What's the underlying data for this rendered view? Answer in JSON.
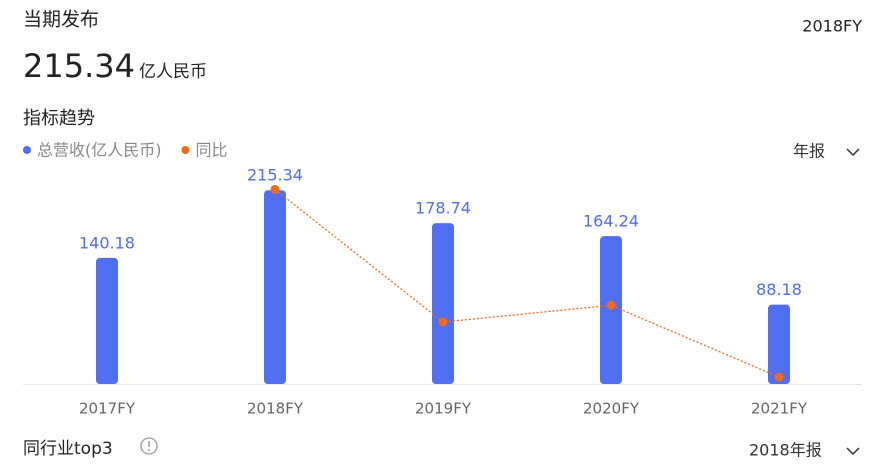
{
  "header": {
    "title": "当期发布",
    "period": "2018FY",
    "value": "215.34",
    "unit": "亿人民币"
  },
  "section_title": "指标趋势",
  "report_selector": "年报",
  "footer": {
    "title": "同行业top3",
    "selector": "2018年报"
  },
  "chart_data": {
    "type": "bar",
    "categories": [
      "2017FY",
      "2018FY",
      "2019FY",
      "2020FY",
      "2021FY"
    ],
    "series": [
      {
        "name": "总营收(亿人民币)",
        "type": "bar",
        "color": "#4f6ef2",
        "values": [
          140.18,
          215.34,
          178.74,
          164.24,
          88.18
        ]
      },
      {
        "name": "同比",
        "type": "line",
        "axis": "y2",
        "color": "#f26a1b",
        "values": [
          null,
          53.6,
          -17.0,
          -8.1,
          -46.3
        ]
      }
    ],
    "ylim": [
      0,
      240
    ],
    "y2lim": [
      -50,
      65
    ]
  }
}
